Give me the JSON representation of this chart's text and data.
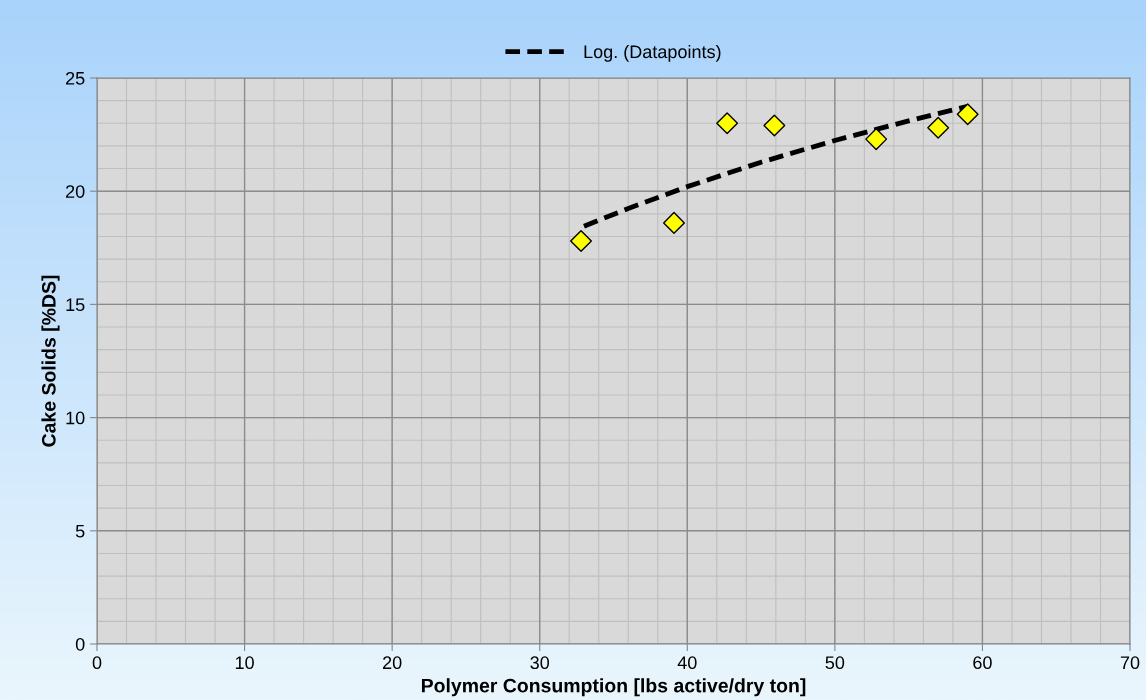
{
  "chart_data": {
    "type": "scatter",
    "xlabel": "Polymer Consumption [lbs active/dry ton]",
    "ylabel": "Cake Solids [%DS]",
    "series": [
      {
        "color": "#ffff00",
        "marker": "diamond",
        "x": [
          32.8,
          39.1,
          42.7,
          45.9,
          52.8,
          57.0,
          59.0
        ],
        "values": [
          17.8,
          18.6,
          23.0,
          22.9,
          22.3,
          22.8,
          23.4
        ]
      },
      {
        "type": "line",
        "name": "Log. (Datapoints)",
        "color": "#000000",
        "line_style": "dashed",
        "marker": "none",
        "x": [
          33,
          36,
          40,
          45,
          50,
          55,
          59
        ],
        "values": [
          18.45,
          19.24,
          20.2,
          21.28,
          22.24,
          23.11,
          23.75
        ]
      }
    ],
    "xlim": [
      0,
      70
    ],
    "xticks": [
      0,
      10,
      20,
      30,
      40,
      50,
      60,
      70
    ],
    "ylim": [
      0,
      25
    ],
    "yticks": [
      0,
      5,
      10,
      15,
      20,
      25
    ],
    "grid": true,
    "legend": "top"
  }
}
